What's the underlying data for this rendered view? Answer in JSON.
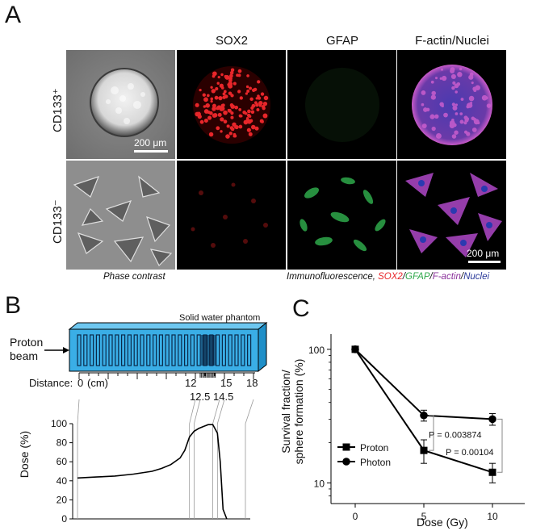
{
  "panel_a": {
    "letter": "A",
    "columns": [
      "SOX2",
      "GFAP",
      "F-actin/Nuclei"
    ],
    "rows": [
      "CD133⁺",
      "CD133⁻"
    ],
    "scalebar_top": "200 μm",
    "scalebar_bottom": "200 μm",
    "caption_left": "Phase contrast",
    "caption_right": {
      "prefix": "Immunofluorescence, ",
      "sox2": "SOX2",
      "slash1": "/",
      "gfap": "GFAP",
      "slash2": "/",
      "factin": "F-actin",
      "slash3": "/",
      "nuclei": "Nuclei"
    },
    "colors": {
      "sox2": "#e8262a",
      "gfap": "#2ea84a",
      "factin": "#8a2f9a",
      "nuclei": "#2a3a9a"
    }
  },
  "panel_b": {
    "letter": "B",
    "phantom_label": "Solid water phantom",
    "beam_label_1": "Proton",
    "beam_label_2": "beam",
    "distance_label": "Distance:",
    "ruler_labels": [
      "0",
      "(cm)",
      "12",
      "15",
      "18",
      "12.5",
      "14.5"
    ],
    "ylabel": "Dose (%)",
    "yticks": [
      "100",
      "80",
      "60",
      "40",
      "20",
      "0"
    ],
    "phantom_color": "#3aaee6"
  },
  "panel_c": {
    "letter": "C",
    "ylabel_1": "Survival fraction/",
    "ylabel_2": "sphere formation (%)",
    "xlabel": "Dose (Gy)",
    "xticks": [
      "0",
      "5",
      "10"
    ],
    "yticks": [
      "100",
      "10"
    ],
    "p1": "P = 0.003874",
    "p2": "P = 0.00104",
    "legend": [
      "Proton",
      "Photon"
    ]
  },
  "chart_data": [
    {
      "type": "line",
      "title": "",
      "xlabel": "Distance (cm)",
      "ylabel": "Dose (%)",
      "ylim": [
        0,
        100
      ],
      "x": [
        0,
        2,
        4,
        6,
        8,
        9,
        10,
        11,
        11.5,
        12,
        12.5,
        13,
        13.5,
        14,
        14.5,
        15,
        15.3,
        15.6,
        16
      ],
      "values": [
        43,
        44,
        45,
        47,
        50,
        53,
        57,
        64,
        72,
        86,
        92,
        95,
        97,
        99,
        99,
        90,
        60,
        10,
        0
      ]
    },
    {
      "type": "line",
      "title": "",
      "xlabel": "Dose (Gy)",
      "ylabel": "Survival fraction/ sphere formation (%)",
      "y_scale": "log",
      "categories": [
        0,
        5,
        10
      ],
      "series": [
        {
          "name": "Proton",
          "values": [
            100,
            17.5,
            12.0
          ],
          "errors": [
            0,
            3.5,
            2.0
          ]
        },
        {
          "name": "Photon",
          "values": [
            100,
            32.0,
            30.0
          ],
          "errors": [
            0,
            3.0,
            3.0
          ]
        }
      ],
      "annotations": [
        "P = 0.003874",
        "P = 0.00104"
      ]
    }
  ]
}
